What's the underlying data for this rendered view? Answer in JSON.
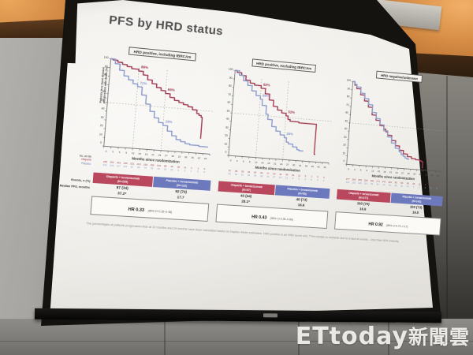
{
  "watermark": {
    "text_latin": "ETtoday",
    "text_cjk": "新聞雲"
  },
  "slide": {
    "title": "PFS by HRD status",
    "y_axis_label_line1": "Patients free from disease",
    "y_axis_label_line2": "progression and death (%)",
    "no_at_risk": "No. at risk",
    "arm_olaparib": "Olaparib",
    "arm_placebo": "Placebo",
    "events_label": "Events, n (%)",
    "median_label": "Median PFS, months",
    "footnote": "The percentages of patients progression-free at 12 months and 24 months have been calculated based on Kaplan–Meier estimates. HRD positive is an HRD score ≥42. *The median is unstable due to a lack of events – less than 50% maturity",
    "colors": {
      "olaparib": "#a23b52",
      "placebo": "#8b9ccd",
      "header_red": "#b9485f",
      "header_blue": "#6d79bd"
    }
  },
  "chart_data": [
    {
      "type": "line",
      "subtype": "kaplan-meier",
      "title": "HRD positive, including tBRCAm",
      "xlabel": "Months since randomization",
      "ylabel": "Patients free from disease progression and death (%)",
      "xlim": [
        0,
        45
      ],
      "ylim": [
        0,
        100
      ],
      "x_ticks": [
        0,
        3,
        6,
        9,
        12,
        15,
        18,
        21,
        24,
        27,
        30,
        33,
        36,
        39,
        42,
        45
      ],
      "y_ticks": [
        100,
        90,
        80,
        70,
        60,
        50,
        40,
        30,
        20,
        10,
        0
      ],
      "ref_h": [
        50
      ],
      "ref_v": [
        12,
        24
      ],
      "series": [
        {
          "name": "Olaparib + bevacizumab",
          "color": "#a23b52",
          "points": [
            [
              0,
              100
            ],
            [
              1,
              99
            ],
            [
              3,
              97
            ],
            [
              5,
              95
            ],
            [
              7,
              93
            ],
            [
              9,
              91
            ],
            [
              12,
              89
            ],
            [
              14,
              85
            ],
            [
              16,
              80
            ],
            [
              18,
              76
            ],
            [
              20,
              72
            ],
            [
              22,
              69
            ],
            [
              24,
              66
            ],
            [
              26,
              62
            ],
            [
              28,
              59
            ],
            [
              30,
              57
            ],
            [
              32,
              55
            ],
            [
              34,
              53
            ],
            [
              36,
              50
            ],
            [
              38,
              46
            ],
            [
              39,
              44
            ],
            [
              40,
              42
            ],
            [
              40.5,
              17
            ]
          ],
          "pct_labels": [
            {
              "x": 12,
              "y": 89,
              "text": "89%"
            },
            {
              "x": 24,
              "y": 66,
              "text": "66%"
            }
          ],
          "at_risk": [
            255,
            252,
            242,
            236,
            223,
            213,
            193,
            156,
            103,
            85,
            46,
            26,
            11,
            1,
            1,
            0
          ]
        },
        {
          "name": "Placebo + bevacizumab",
          "color": "#8b9ccd",
          "points": [
            [
              0,
              100
            ],
            [
              2,
              95
            ],
            [
              4,
              88
            ],
            [
              6,
              82
            ],
            [
              8,
              78
            ],
            [
              10,
              74
            ],
            [
              12,
              71
            ],
            [
              14,
              62
            ],
            [
              16,
              52
            ],
            [
              18,
              44
            ],
            [
              20,
              37
            ],
            [
              22,
              32
            ],
            [
              24,
              29
            ],
            [
              26,
              23
            ],
            [
              28,
              18
            ],
            [
              30,
              14
            ],
            [
              32,
              12
            ],
            [
              34,
              10
            ],
            [
              36,
              9
            ],
            [
              40,
              8
            ],
            [
              44,
              8
            ]
          ],
          "pct_labels": [
            {
              "x": 12,
              "y": 71,
              "text": "71%"
            },
            {
              "x": 24,
              "y": 29,
              "text": "29%"
            }
          ],
          "at_risk": [
            132,
            125,
            117,
            107,
            92,
            86,
            74,
            56,
            40,
            29,
            15,
            9,
            2,
            1,
            0,
            0
          ]
        }
      ],
      "table": {
        "columns": [
          {
            "header": "Olaparib + bevacizumab",
            "n": "(N=255)",
            "events": "87 (34)",
            "median": "37.2*"
          },
          {
            "header": "Placebo + bevacizumab",
            "n": "(N=132)",
            "events": "92 (70)",
            "median": "17.7"
          }
        ],
        "hr": "HR 0.33",
        "hr_ci": "(95% CI 0.25–0.45)"
      }
    },
    {
      "type": "line",
      "subtype": "kaplan-meier",
      "title": "HRD positive, excluding tBRCAm",
      "xlabel": "Months since randomization",
      "ylabel": "Patients free from disease progression and death (%)",
      "xlim": [
        0,
        45
      ],
      "ylim": [
        0,
        100
      ],
      "x_ticks": [
        0,
        3,
        6,
        9,
        12,
        15,
        18,
        21,
        24,
        27,
        30,
        33,
        36,
        39,
        42,
        45
      ],
      "y_ticks": [
        100,
        90,
        80,
        70,
        60,
        50,
        40,
        30,
        20,
        10,
        0
      ],
      "ref_h": [
        50
      ],
      "ref_v": [
        12,
        24
      ],
      "series": [
        {
          "name": "Olaparib + bevacizumab",
          "color": "#a23b52",
          "points": [
            [
              0,
              100
            ],
            [
              1,
              98
            ],
            [
              3,
              95
            ],
            [
              5,
              90
            ],
            [
              7,
              87
            ],
            [
              9,
              85
            ],
            [
              12,
              82
            ],
            [
              14,
              76
            ],
            [
              16,
              69
            ],
            [
              18,
              62
            ],
            [
              20,
              58
            ],
            [
              22,
              55
            ],
            [
              24,
              52
            ],
            [
              25,
              48
            ],
            [
              26,
              46
            ],
            [
              28,
              46
            ],
            [
              30,
              45
            ],
            [
              33,
              45
            ],
            [
              36,
              45
            ],
            [
              37.5,
              45
            ],
            [
              38,
              9
            ],
            [
              38.5,
              9
            ]
          ],
          "pct_labels": [
            {
              "x": 12,
              "y": 82,
              "text": "82%"
            },
            {
              "x": 24,
              "y": 52,
              "text": "52%"
            }
          ],
          "at_risk": [
            97,
            96,
            93,
            91,
            87,
            84,
            77,
            62,
            42,
            34,
            21,
            11,
            5,
            1,
            0,
            0
          ]
        },
        {
          "name": "Placebo + bevacizumab",
          "color": "#8b9ccd",
          "points": [
            [
              0,
              100
            ],
            [
              2,
              95
            ],
            [
              4,
              89
            ],
            [
              6,
              84
            ],
            [
              8,
              78
            ],
            [
              10,
              73
            ],
            [
              12,
              69
            ],
            [
              13,
              62
            ],
            [
              15,
              52
            ],
            [
              16,
              46
            ],
            [
              18,
              38
            ],
            [
              20,
              33
            ],
            [
              22,
              29
            ],
            [
              24,
              26
            ],
            [
              25,
              21
            ],
            [
              26,
              19
            ],
            [
              28,
              16
            ],
            [
              30,
              13
            ],
            [
              31,
              12
            ],
            [
              33,
              12
            ]
          ],
          "pct_labels": [
            {
              "x": 12,
              "y": 69,
              "text": "69%"
            },
            {
              "x": 24,
              "y": 26,
              "text": "26%"
            }
          ],
          "at_risk": [
            55,
            53,
            51,
            46,
            42,
            39,
            33,
            27,
            19,
            13,
            5,
            3,
            1,
            0,
            0,
            0
          ]
        }
      ],
      "table": {
        "columns": [
          {
            "header": "Olaparib + bevacizumab",
            "n": "(N=97)",
            "events": "43 (44)",
            "median": "28.1*"
          },
          {
            "header": "Placebo + bevacizumab",
            "n": "(N=55)",
            "events": "40 (73)",
            "median": "16.6"
          }
        ],
        "hr": "HR 0.43",
        "hr_ci": "(95% CI 0.28–0.66)"
      }
    },
    {
      "type": "line",
      "subtype": "kaplan-meier",
      "title": "HRD negative/unknown",
      "xlabel": "Months since randomization",
      "ylabel": "Patients free from disease progression and death (%)",
      "xlim": [
        0,
        45
      ],
      "ylim": [
        0,
        100
      ],
      "x_ticks": [
        0,
        3,
        6,
        9,
        12,
        15,
        18,
        21,
        24,
        27,
        30,
        33,
        36,
        39,
        42,
        45
      ],
      "y_ticks": [
        100,
        90,
        80,
        70,
        60,
        50,
        40,
        30,
        20,
        10,
        0
      ],
      "ref_h": [
        50
      ],
      "ref_v": [],
      "series": [
        {
          "name": "Olaparib + bevacizumab",
          "color": "#a23b52",
          "points": [
            [
              0,
              100
            ],
            [
              1,
              96
            ],
            [
              2,
              92
            ],
            [
              4,
              85
            ],
            [
              6,
              78
            ],
            [
              8,
              71
            ],
            [
              10,
              62
            ],
            [
              12,
              56
            ],
            [
              14,
              50
            ],
            [
              16,
              46
            ],
            [
              17,
              43
            ],
            [
              18,
              39
            ],
            [
              20,
              33
            ],
            [
              22,
              27
            ],
            [
              24,
              22
            ],
            [
              26,
              18
            ],
            [
              28,
              15
            ],
            [
              30,
              13
            ],
            [
              32,
              12
            ],
            [
              34,
              11
            ],
            [
              35,
              10
            ],
            [
              35.5,
              2
            ]
          ],
          "pct_labels": [],
          "at_risk": [
            277,
            263,
            250,
            226,
            196,
            171,
            147,
            116,
            85,
            60,
            38,
            25,
            11,
            3,
            1,
            0
          ]
        },
        {
          "name": "Placebo + bevacizumab",
          "color": "#8b9ccd",
          "points": [
            [
              0,
              100
            ],
            [
              1,
              97
            ],
            [
              2,
              94
            ],
            [
              4,
              87
            ],
            [
              6,
              81
            ],
            [
              8,
              74
            ],
            [
              10,
              65
            ],
            [
              12,
              58
            ],
            [
              14,
              51
            ],
            [
              16,
              44
            ],
            [
              18,
              37
            ],
            [
              20,
              30
            ],
            [
              22,
              24
            ],
            [
              24,
              20
            ],
            [
              25,
              17
            ],
            [
              26,
              15
            ],
            [
              27,
              13
            ],
            [
              28,
              12
            ],
            [
              29,
              12
            ]
          ],
          "pct_labels": [],
          "at_risk": [
            142,
            133,
            126,
            110,
            92,
            81,
            70,
            52,
            38,
            26,
            14,
            7,
            3,
            1,
            0,
            0
          ]
        }
      ],
      "table": {
        "columns": [
          {
            "header": "Olaparib + bevacizumab",
            "n": "(N=277)",
            "events": "193 (70)",
            "median": "16.9"
          },
          {
            "header": "Placebo + bevacizumab",
            "n": "(N=142)",
            "events": "103 (73)",
            "median": "16.0"
          }
        ],
        "hr": "HR 0.92",
        "hr_ci": "(95% CI 0.72–1.17)"
      }
    }
  ]
}
